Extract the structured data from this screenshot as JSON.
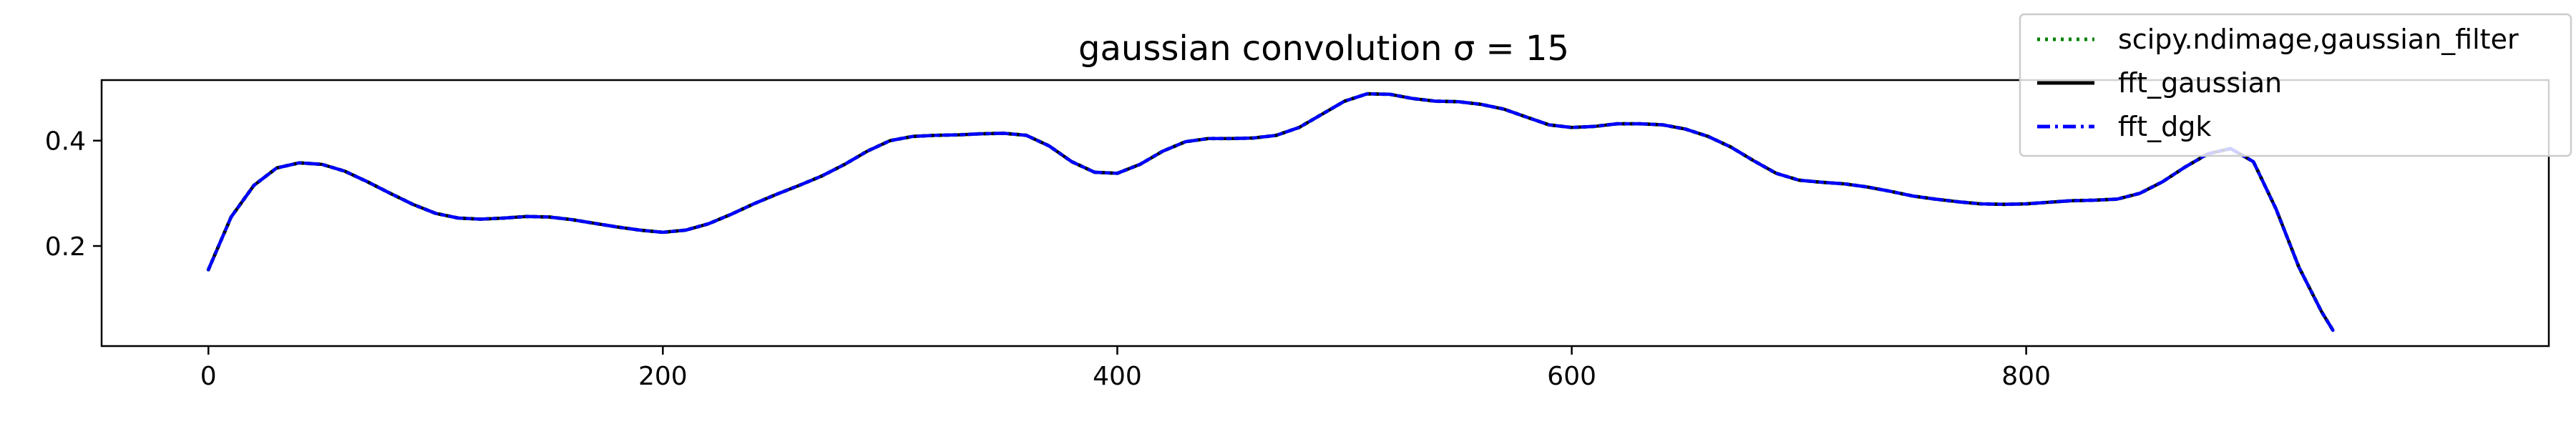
{
  "chart_data": {
    "type": "line",
    "title": "gaussian convolution σ = 15",
    "xlabel": "",
    "ylabel": "",
    "xlim": [
      -47,
      1030
    ],
    "ylim": [
      0.01,
      0.515
    ],
    "x_ticks": [
      0,
      200,
      400,
      600,
      800
    ],
    "x_tick_labels": [
      "0",
      "200",
      "400",
      "600",
      "800"
    ],
    "y_ticks": [
      0.2,
      0.4
    ],
    "y_tick_labels": [
      "0.2",
      "0.4"
    ],
    "grid": false,
    "legend_position": "top-right",
    "x": [
      0,
      10,
      20,
      30,
      40,
      50,
      60,
      70,
      80,
      90,
      100,
      110,
      120,
      130,
      140,
      150,
      160,
      170,
      180,
      190,
      200,
      210,
      220,
      230,
      240,
      250,
      260,
      270,
      280,
      290,
      300,
      310,
      320,
      330,
      340,
      350,
      360,
      370,
      380,
      390,
      400,
      410,
      420,
      430,
      440,
      450,
      460,
      470,
      480,
      490,
      500,
      510,
      520,
      530,
      540,
      550,
      560,
      570,
      580,
      590,
      600,
      610,
      620,
      630,
      640,
      650,
      660,
      670,
      680,
      690,
      700,
      710,
      720,
      730,
      740,
      750,
      760,
      770,
      780,
      790,
      800,
      810,
      820,
      830,
      840,
      850,
      860,
      870,
      880,
      890,
      900,
      910,
      920,
      930,
      935
    ],
    "series": [
      {
        "name": "scipy.ndimage,gaussian_filter",
        "color": "#008000",
        "dash": "dotted",
        "values": [
          0.155,
          0.255,
          0.315,
          0.348,
          0.358,
          0.355,
          0.342,
          0.322,
          0.3,
          0.279,
          0.262,
          0.253,
          0.251,
          0.253,
          0.256,
          0.255,
          0.25,
          0.243,
          0.236,
          0.23,
          0.226,
          0.23,
          0.242,
          0.26,
          0.28,
          0.298,
          0.315,
          0.333,
          0.355,
          0.38,
          0.4,
          0.408,
          0.41,
          0.411,
          0.413,
          0.414,
          0.41,
          0.39,
          0.36,
          0.34,
          0.338,
          0.355,
          0.38,
          0.398,
          0.404,
          0.404,
          0.405,
          0.41,
          0.425,
          0.45,
          0.475,
          0.489,
          0.488,
          0.48,
          0.475,
          0.474,
          0.469,
          0.46,
          0.445,
          0.43,
          0.425,
          0.427,
          0.432,
          0.432,
          0.43,
          0.422,
          0.408,
          0.388,
          0.362,
          0.338,
          0.325,
          0.321,
          0.318,
          0.312,
          0.304,
          0.295,
          0.289,
          0.284,
          0.28,
          0.279,
          0.28,
          0.283,
          0.286,
          0.287,
          0.289,
          0.3,
          0.322,
          0.35,
          0.375,
          0.385,
          0.36,
          0.27,
          0.16,
          0.075,
          0.04
        ]
      },
      {
        "name": "fft_gaussian",
        "color": "#000000",
        "dash": "solid",
        "values": [
          0.155,
          0.255,
          0.315,
          0.348,
          0.358,
          0.355,
          0.342,
          0.322,
          0.3,
          0.279,
          0.262,
          0.253,
          0.251,
          0.253,
          0.256,
          0.255,
          0.25,
          0.243,
          0.236,
          0.23,
          0.226,
          0.23,
          0.242,
          0.26,
          0.28,
          0.298,
          0.315,
          0.333,
          0.355,
          0.38,
          0.4,
          0.408,
          0.41,
          0.411,
          0.413,
          0.414,
          0.41,
          0.39,
          0.36,
          0.34,
          0.338,
          0.355,
          0.38,
          0.398,
          0.404,
          0.404,
          0.405,
          0.41,
          0.425,
          0.45,
          0.475,
          0.489,
          0.488,
          0.48,
          0.475,
          0.474,
          0.469,
          0.46,
          0.445,
          0.43,
          0.425,
          0.427,
          0.432,
          0.432,
          0.43,
          0.422,
          0.408,
          0.388,
          0.362,
          0.338,
          0.325,
          0.321,
          0.318,
          0.312,
          0.304,
          0.295,
          0.289,
          0.284,
          0.28,
          0.279,
          0.28,
          0.283,
          0.286,
          0.287,
          0.289,
          0.3,
          0.322,
          0.35,
          0.375,
          0.385,
          0.36,
          0.27,
          0.16,
          0.075,
          0.04
        ]
      },
      {
        "name": "fft_dgk",
        "color": "#0000ff",
        "dash": "dashdot",
        "values": [
          0.155,
          0.255,
          0.315,
          0.348,
          0.358,
          0.355,
          0.342,
          0.322,
          0.3,
          0.279,
          0.262,
          0.253,
          0.251,
          0.253,
          0.256,
          0.255,
          0.25,
          0.243,
          0.236,
          0.23,
          0.226,
          0.23,
          0.242,
          0.26,
          0.28,
          0.298,
          0.315,
          0.333,
          0.355,
          0.38,
          0.4,
          0.408,
          0.41,
          0.411,
          0.413,
          0.414,
          0.41,
          0.39,
          0.36,
          0.34,
          0.338,
          0.355,
          0.38,
          0.398,
          0.404,
          0.404,
          0.405,
          0.41,
          0.425,
          0.45,
          0.475,
          0.489,
          0.488,
          0.48,
          0.475,
          0.474,
          0.469,
          0.46,
          0.445,
          0.43,
          0.425,
          0.427,
          0.432,
          0.432,
          0.43,
          0.422,
          0.408,
          0.388,
          0.362,
          0.338,
          0.325,
          0.321,
          0.318,
          0.312,
          0.304,
          0.295,
          0.289,
          0.284,
          0.28,
          0.279,
          0.28,
          0.283,
          0.286,
          0.287,
          0.289,
          0.3,
          0.322,
          0.35,
          0.375,
          0.385,
          0.36,
          0.27,
          0.16,
          0.075,
          0.04
        ]
      }
    ]
  }
}
